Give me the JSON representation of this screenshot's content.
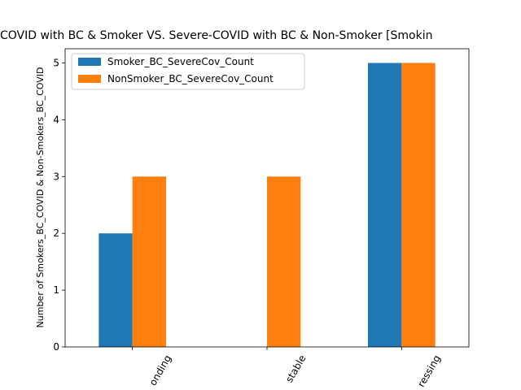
{
  "chart_data": {
    "type": "bar",
    "title": "COVID with BC & Smoker VS. Severe-COVID with BC & Non-Smoker   [Smokin",
    "y_label": "Number of Smokers_BC_COVID & Non-Smokers_BC_COVID",
    "categories": [
      "onding",
      "stable",
      "ressing"
    ],
    "series": [
      {
        "name": "Smoker_BC_SevereCov_Count",
        "color": "#1f77b4",
        "values": [
          2,
          0,
          5
        ]
      },
      {
        "name": "NonSmoker_BC_SevereCov_Count",
        "color": "#ff7f0e",
        "values": [
          3,
          3,
          5
        ]
      }
    ],
    "ylim": [
      0,
      5.25
    ],
    "yticks": [
      0,
      1,
      2,
      3,
      4,
      5
    ],
    "legend": "upper left"
  }
}
